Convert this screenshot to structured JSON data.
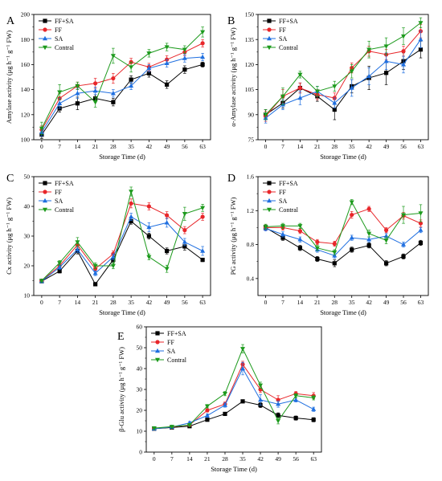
{
  "figure": {
    "colors": {
      "FF+SA": "#000000",
      "FF": "#e8262a",
      "SA": "#1f6fe0",
      "Contral": "#1c9a1c"
    },
    "markers": {
      "FF+SA": "square",
      "FF": "circle",
      "SA": "triangle-up",
      "Contral": "triangle-down"
    }
  },
  "chart_data": [
    {
      "id": "A",
      "letter": "A",
      "type": "line",
      "xlabel": "Storage Time (d)",
      "ylabel": "Amylase activity (μg h⁻¹ g⁻¹ FW)",
      "x": [
        0,
        7,
        14,
        21,
        28,
        35,
        42,
        49,
        56,
        63
      ],
      "xticks": [
        "0",
        "7",
        "14",
        "21",
        "28",
        "35",
        "42",
        "49",
        "56",
        "63"
      ],
      "ylim": [
        100,
        200
      ],
      "yticks": [
        100,
        120,
        140,
        160,
        180,
        200
      ],
      "legend_position": "top-left",
      "series": [
        {
          "name": "FF+SA",
          "values": [
            104,
            125,
            129,
            133,
            130,
            148,
            153,
            144,
            156,
            160
          ],
          "err": [
            3,
            3,
            5,
            3,
            3,
            3,
            3,
            3,
            3,
            2
          ]
        },
        {
          "name": "FF",
          "values": [
            108,
            133,
            143,
            145,
            149,
            162,
            158,
            164,
            170,
            177
          ],
          "err": [
            3,
            4,
            3,
            4,
            4,
            3,
            3,
            3,
            3,
            3
          ]
        },
        {
          "name": "SA",
          "values": [
            106,
            129,
            137,
            139,
            137,
            143,
            157,
            161,
            165,
            166
          ],
          "err": [
            3,
            4,
            4,
            3,
            3,
            3,
            3,
            3,
            3,
            3
          ]
        },
        {
          "name": "Contral",
          "values": [
            109,
            138,
            143,
            130,
            167,
            158,
            169,
            174,
            172,
            186
          ],
          "err": [
            5,
            6,
            3,
            4,
            6,
            4,
            3,
            3,
            3,
            4
          ]
        }
      ]
    },
    {
      "id": "B",
      "letter": "B",
      "type": "line",
      "xlabel": "Storage Time (d)",
      "ylabel": "α-Amylase activity (μg h⁻¹ g⁻¹ FW)",
      "x": [
        0,
        7,
        14,
        21,
        28,
        35,
        42,
        49,
        56,
        63
      ],
      "xticks": [
        "0",
        "7",
        "14",
        "21",
        "28",
        "35",
        "42",
        "49",
        "56",
        "63"
      ],
      "ylim": [
        75,
        150
      ],
      "yticks": [
        75,
        90,
        105,
        120,
        135,
        150
      ],
      "legend_position": "top-left",
      "series": [
        {
          "name": "FF+SA",
          "values": [
            90,
            97,
            106,
            101,
            93,
            107,
            112,
            115,
            122,
            129
          ],
          "err": [
            3,
            3,
            3,
            3,
            6,
            4,
            7,
            7,
            5,
            5
          ]
        },
        {
          "name": "FF",
          "values": [
            89,
            101,
            106,
            102,
            100,
            118,
            128,
            126,
            128,
            140
          ],
          "err": [
            3,
            4,
            3,
            3,
            3,
            3,
            3,
            3,
            3,
            4
          ]
        },
        {
          "name": "SA",
          "values": [
            88,
            96,
            100,
            104,
            97,
            106,
            113,
            122,
            120,
            135
          ],
          "err": [
            3,
            3,
            4,
            3,
            3,
            5,
            5,
            5,
            5,
            5
          ]
        },
        {
          "name": "Contral",
          "values": [
            90,
            101,
            114,
            104,
            107,
            116,
            129,
            131,
            137,
            145
          ],
          "err": [
            3,
            5,
            2,
            3,
            3,
            4,
            5,
            5,
            5,
            3
          ]
        }
      ]
    },
    {
      "id": "C",
      "letter": "C",
      "type": "line",
      "xlabel": "Storage Time (d)",
      "ylabel": "Cx activity (μg h⁻¹ g⁻¹ FW)",
      "x": [
        0,
        7,
        14,
        21,
        28,
        35,
        42,
        49,
        56,
        63
      ],
      "xticks": [
        "0",
        "7",
        "14",
        "21",
        "28",
        "35",
        "42",
        "49",
        "56",
        "63"
      ],
      "ylim": [
        10,
        50
      ],
      "yticks": [
        10,
        20,
        30,
        40,
        50
      ],
      "legend_position": "top-left",
      "series": [
        {
          "name": "FF+SA",
          "values": [
            14.8,
            18.2,
            25,
            13.8,
            22,
            35,
            30,
            25,
            26.5,
            22
          ],
          "err": [
            0.4,
            0.6,
            1,
            0.6,
            1,
            1,
            1,
            1,
            1.2,
            0.6
          ]
        },
        {
          "name": "FF",
          "values": [
            15,
            20,
            27,
            19,
            24,
            41,
            40,
            37,
            32,
            36.5
          ],
          "err": [
            0.4,
            0.8,
            1,
            0.8,
            1,
            1.5,
            1.2,
            1.2,
            1.2,
            1.2
          ]
        },
        {
          "name": "SA",
          "values": [
            14.8,
            19.5,
            25.5,
            17.5,
            23,
            36.5,
            33,
            34.5,
            28,
            25
          ],
          "err": [
            0.4,
            0.8,
            1,
            0.8,
            1,
            1.2,
            1.5,
            1.5,
            1.2,
            1.5
          ]
        },
        {
          "name": "Contral",
          "values": [
            15,
            21,
            28,
            20,
            20,
            45,
            23,
            19,
            37.5,
            39.5
          ],
          "err": [
            0.4,
            0.8,
            1.5,
            1,
            1,
            1.5,
            1,
            1.2,
            2.2,
            1.2
          ]
        }
      ]
    },
    {
      "id": "D",
      "letter": "D",
      "type": "line",
      "xlabel": "Storage Time (d)",
      "ylabel": "PG activity (μg h⁻¹ g⁻¹ FW)",
      "x": [
        0,
        7,
        14,
        21,
        28,
        35,
        42,
        49,
        56,
        63
      ],
      "xticks": [
        "0",
        "7",
        "14",
        "21",
        "28",
        "35",
        "42",
        "49",
        "56",
        "63"
      ],
      "ylim": [
        0.2,
        1.6
      ],
      "yticks": [
        0.4,
        0.8,
        1.2,
        1.6
      ],
      "legend_position": "top-left",
      "series": [
        {
          "name": "FF+SA",
          "values": [
            1.0,
            0.88,
            0.76,
            0.63,
            0.58,
            0.74,
            0.79,
            0.58,
            0.66,
            0.82
          ],
          "err": [
            0.03,
            0.03,
            0.03,
            0.03,
            0.04,
            0.03,
            0.03,
            0.03,
            0.03,
            0.03
          ]
        },
        {
          "name": "FF",
          "values": [
            1.0,
            1.0,
            0.96,
            0.83,
            0.81,
            1.15,
            1.22,
            0.97,
            1.14,
            1.05
          ],
          "err": [
            0.03,
            0.03,
            0.03,
            0.03,
            0.03,
            0.04,
            0.03,
            0.03,
            0.04,
            0.04
          ]
        },
        {
          "name": "SA",
          "values": [
            0.99,
            0.92,
            0.86,
            0.74,
            0.67,
            0.88,
            0.86,
            0.9,
            0.8,
            0.97
          ],
          "err": [
            0.03,
            0.03,
            0.03,
            0.03,
            0.03,
            0.03,
            0.03,
            0.03,
            0.03,
            0.03
          ]
        },
        {
          "name": "Contral",
          "values": [
            1.01,
            1.02,
            1.02,
            0.76,
            0.71,
            1.3,
            0.93,
            0.85,
            1.15,
            1.17
          ],
          "err": [
            0.03,
            0.03,
            0.03,
            0.03,
            0.03,
            0.03,
            0.04,
            0.04,
            0.1,
            0.1
          ]
        }
      ]
    },
    {
      "id": "E",
      "letter": "E",
      "type": "line",
      "xlabel": "Storage Time (d)",
      "ylabel": "β-Glu activity (μg h⁻¹ g⁻¹ FW)",
      "x": [
        0,
        7,
        14,
        21,
        28,
        35,
        42,
        49,
        56,
        63
      ],
      "xticks": [
        "0",
        "7",
        "14",
        "21",
        "28",
        "35",
        "42",
        "49",
        "56",
        "63"
      ],
      "ylim": [
        0,
        60
      ],
      "yticks": [
        0,
        10,
        20,
        30,
        40,
        50,
        60
      ],
      "legend_position": "top-left",
      "series": [
        {
          "name": "FF+SA",
          "values": [
            11.2,
            11.8,
            12.4,
            15.5,
            18.3,
            24.3,
            22.5,
            17.6,
            16.3,
            15.5
          ],
          "err": [
            0.4,
            0.4,
            0.5,
            0.6,
            0.6,
            0.7,
            1.2,
            1.2,
            1,
            1
          ]
        },
        {
          "name": "FF",
          "values": [
            11.3,
            12,
            13,
            20,
            23,
            42,
            30,
            25,
            28,
            27
          ],
          "err": [
            0.4,
            0.4,
            0.6,
            0.8,
            1,
            1.5,
            1.5,
            2,
            1,
            1.5
          ]
        },
        {
          "name": "SA",
          "values": [
            11.2,
            12,
            14,
            17.5,
            22.5,
            40,
            25,
            23,
            25,
            20.5
          ],
          "err": [
            0.4,
            0.4,
            0.6,
            0.8,
            1,
            3,
            2.5,
            1.5,
            1,
            1
          ]
        },
        {
          "name": "Contral",
          "values": [
            11.5,
            12.2,
            13,
            22,
            28,
            49.5,
            32,
            15,
            27,
            26
          ],
          "err": [
            0.4,
            0.4,
            0.6,
            0.8,
            1,
            2,
            1.5,
            1.5,
            1,
            1
          ]
        }
      ]
    }
  ]
}
